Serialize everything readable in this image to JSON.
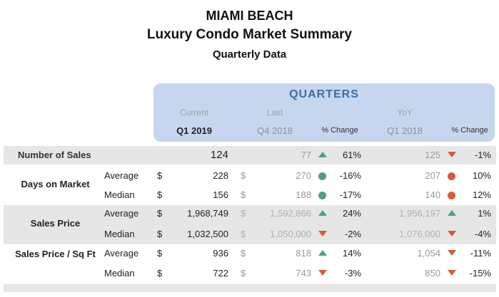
{
  "header": {
    "title": "MIAMI BEACH",
    "subtitle": "Luxury Condo Market Summary",
    "period": "Quarterly Data"
  },
  "table": {
    "group_label": "QUARTERS",
    "column_groups": {
      "current": "Current",
      "last": "Last",
      "yoy": "YoY"
    },
    "columns": {
      "current": "Q1 2019",
      "last": "Q4 2018",
      "last_change": "% Change",
      "yoy": "Q1 2018",
      "yoy_change": "% Change"
    },
    "groups": [
      {
        "metric": "Number of Sales",
        "rows": [
          {
            "current": "124",
            "last": "77",
            "last_indicator": "up",
            "last_change": "61%",
            "yoy": "125",
            "yoy_indicator": "down",
            "yoy_change": "-1%"
          }
        ]
      },
      {
        "metric": "Days on Market",
        "rows": [
          {
            "stat": "Average",
            "currency": "$",
            "current": "228",
            "last_currency": "$",
            "last": "270",
            "last_indicator": "dot-green",
            "last_change": "-16%",
            "yoy": "207",
            "yoy_indicator": "dot-red",
            "yoy_change": "10%"
          },
          {
            "stat": "Median",
            "currency": "$",
            "current": "156",
            "last_currency": "$",
            "last": "188",
            "last_indicator": "dot-green",
            "last_change": "-17%",
            "yoy": "140",
            "yoy_indicator": "dot-red",
            "yoy_change": "12%"
          }
        ]
      },
      {
        "metric": "Sales Price",
        "rows": [
          {
            "stat": "Average",
            "currency": "$",
            "current": "1,968,749",
            "last_currency": "$",
            "last": "1,592,866",
            "last_indicator": "up",
            "last_change": "24%",
            "yoy": "1,956,197",
            "yoy_indicator": "up",
            "yoy_change": "1%"
          },
          {
            "stat": "Median",
            "currency": "$",
            "current": "1,032,500",
            "last_currency": "$",
            "last": "1,050,000",
            "last_indicator": "down",
            "last_change": "-2%",
            "yoy": "1,076,000",
            "yoy_indicator": "down",
            "yoy_change": "-4%"
          }
        ]
      },
      {
        "metric": "Sales Price / Sq Ft",
        "rows": [
          {
            "stat": "Average",
            "currency": "$",
            "current": "936",
            "last_currency": "$",
            "last": "818",
            "last_indicator": "up",
            "last_change": "14%",
            "yoy": "1,054",
            "yoy_indicator": "down",
            "yoy_change": "-11%"
          },
          {
            "stat": "Median",
            "currency": "$",
            "current": "722",
            "last_currency": "$",
            "last": "743",
            "last_indicator": "down",
            "last_change": "-3%",
            "yoy": "850",
            "yoy_indicator": "down",
            "yoy_change": "-15%"
          }
        ]
      }
    ]
  }
}
